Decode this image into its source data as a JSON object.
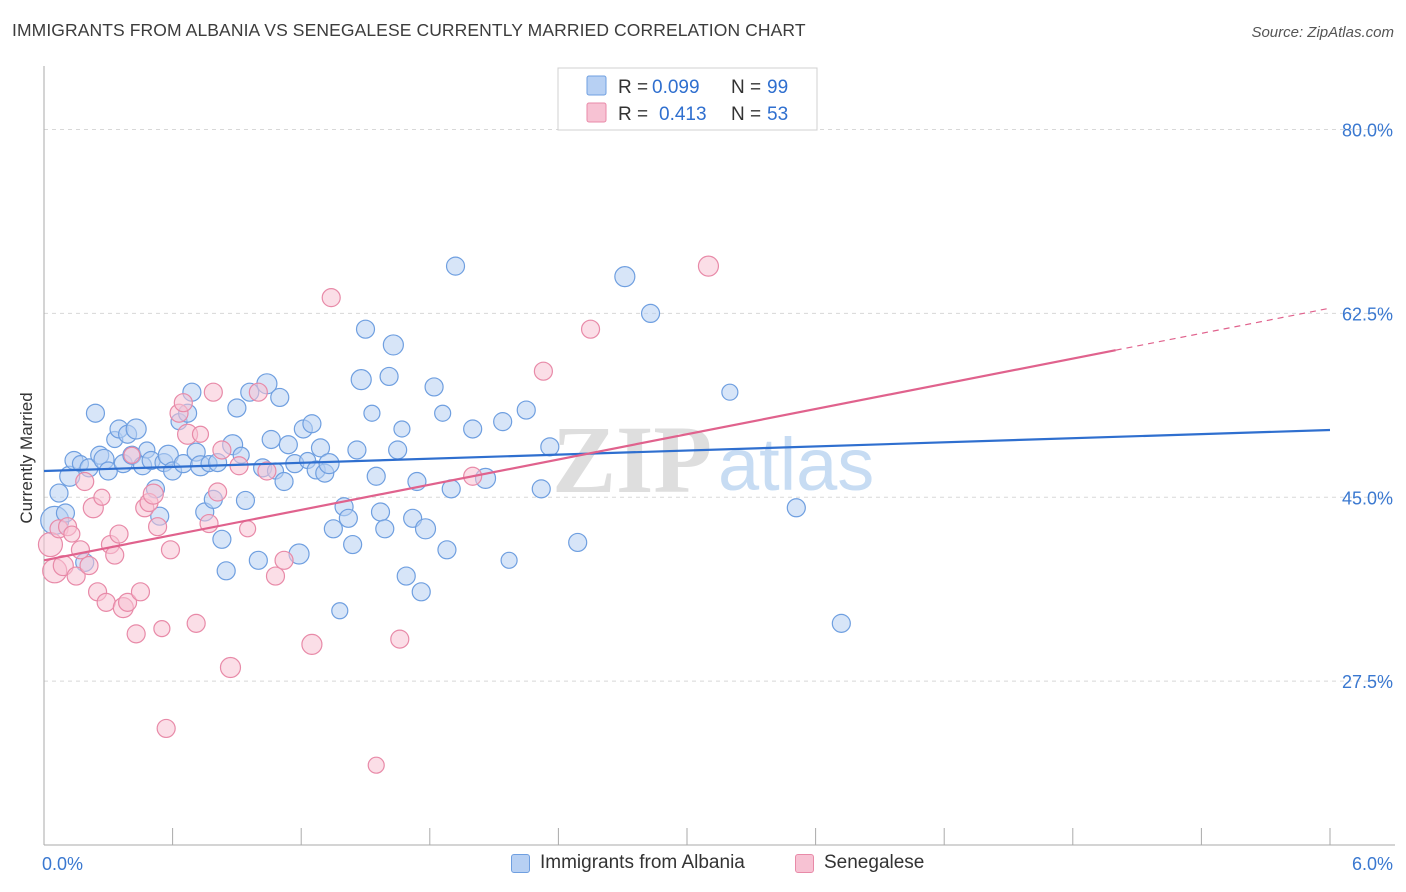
{
  "header": {
    "title": "IMMIGRANTS FROM ALBANIA VS SENEGALESE CURRENTLY MARRIED CORRELATION CHART",
    "source": "Source: ZipAtlas.com"
  },
  "watermark": {
    "zip": "ZIP",
    "atlas": "atlas"
  },
  "chart_data": {
    "type": "scatter",
    "xlabel": "",
    "ylabel": "Currently Married",
    "xlim": [
      0,
      6
    ],
    "ylim": [
      12,
      85
    ],
    "x_tick_labels": [
      {
        "value": 0,
        "label": "0.0%"
      },
      {
        "value": 6,
        "label": "6.0%"
      }
    ],
    "y_ticks": [
      {
        "value": 27.5,
        "label": "27.5%"
      },
      {
        "value": 45.0,
        "label": "45.0%"
      },
      {
        "value": 62.5,
        "label": "62.5%"
      },
      {
        "value": 80.0,
        "label": "80.0%"
      }
    ],
    "grid": "horizontal dashed",
    "legend_position": "top-center",
    "series": [
      {
        "name": "Immigrants from Albania",
        "color": "#6f9fe0",
        "fill": "#b7d0f3",
        "line_color": "#2f6fcf",
        "r_label": "R =",
        "r_value": "0.099",
        "n_label": "N =",
        "n_value": "99",
        "trend": {
          "x": [
            0,
            6
          ],
          "y": [
            47.5,
            51.4
          ]
        },
        "points": [
          [
            0.05,
            42.8
          ],
          [
            0.07,
            45.4
          ],
          [
            0.1,
            43.5
          ],
          [
            0.12,
            47.0
          ],
          [
            0.14,
            48.5
          ],
          [
            0.17,
            48.2
          ],
          [
            0.19,
            38.8
          ],
          [
            0.21,
            47.8
          ],
          [
            0.24,
            53.0
          ],
          [
            0.26,
            49.0
          ],
          [
            0.28,
            48.6
          ],
          [
            0.3,
            47.5
          ],
          [
            0.33,
            50.5
          ],
          [
            0.35,
            51.5
          ],
          [
            0.37,
            48.2
          ],
          [
            0.39,
            51.0
          ],
          [
            0.41,
            49.0
          ],
          [
            0.43,
            51.5
          ],
          [
            0.46,
            48.0
          ],
          [
            0.48,
            49.5
          ],
          [
            0.5,
            48.5
          ],
          [
            0.52,
            45.8
          ],
          [
            0.54,
            43.2
          ],
          [
            0.56,
            48.3
          ],
          [
            0.58,
            49.0
          ],
          [
            0.6,
            47.5
          ],
          [
            0.63,
            52.2
          ],
          [
            0.65,
            48.2
          ],
          [
            0.67,
            53.0
          ],
          [
            0.69,
            55.0
          ],
          [
            0.71,
            49.3
          ],
          [
            0.73,
            48.0
          ],
          [
            0.75,
            43.6
          ],
          [
            0.77,
            48.2
          ],
          [
            0.79,
            44.8
          ],
          [
            0.81,
            48.3
          ],
          [
            0.83,
            41.0
          ],
          [
            0.85,
            38.0
          ],
          [
            0.88,
            50.0
          ],
          [
            0.9,
            53.5
          ],
          [
            0.92,
            49.0
          ],
          [
            0.94,
            44.7
          ],
          [
            0.96,
            55.0
          ],
          [
            1.0,
            39.0
          ],
          [
            1.02,
            47.8
          ],
          [
            1.04,
            55.8
          ],
          [
            1.06,
            50.5
          ],
          [
            1.08,
            47.5
          ],
          [
            1.1,
            54.5
          ],
          [
            1.12,
            46.5
          ],
          [
            1.14,
            50.0
          ],
          [
            1.17,
            48.2
          ],
          [
            1.19,
            39.6
          ],
          [
            1.21,
            51.5
          ],
          [
            1.23,
            48.5
          ],
          [
            1.25,
            52.0
          ],
          [
            1.27,
            47.6
          ],
          [
            1.29,
            49.7
          ],
          [
            1.31,
            47.3
          ],
          [
            1.33,
            48.2
          ],
          [
            1.35,
            42.0
          ],
          [
            1.38,
            34.2
          ],
          [
            1.4,
            44.1
          ],
          [
            1.42,
            43.0
          ],
          [
            1.44,
            40.5
          ],
          [
            1.46,
            49.5
          ],
          [
            1.48,
            56.2
          ],
          [
            1.5,
            61.0
          ],
          [
            1.53,
            53.0
          ],
          [
            1.55,
            47.0
          ],
          [
            1.57,
            43.6
          ],
          [
            1.59,
            42.0
          ],
          [
            1.61,
            56.5
          ],
          [
            1.63,
            59.5
          ],
          [
            1.65,
            49.5
          ],
          [
            1.67,
            51.5
          ],
          [
            1.69,
            37.5
          ],
          [
            1.72,
            43.0
          ],
          [
            1.74,
            46.5
          ],
          [
            1.76,
            36.0
          ],
          [
            1.78,
            42.0
          ],
          [
            1.82,
            55.5
          ],
          [
            1.86,
            53.0
          ],
          [
            1.88,
            40.0
          ],
          [
            1.9,
            45.8
          ],
          [
            1.92,
            67.0
          ],
          [
            2.0,
            51.5
          ],
          [
            2.06,
            46.8
          ],
          [
            2.14,
            52.2
          ],
          [
            2.17,
            39.0
          ],
          [
            2.25,
            53.3
          ],
          [
            2.32,
            45.8
          ],
          [
            2.36,
            49.8
          ],
          [
            2.49,
            40.7
          ],
          [
            2.71,
            66.0
          ],
          [
            2.83,
            62.5
          ],
          [
            3.2,
            55.0
          ],
          [
            3.51,
            44.0
          ],
          [
            3.72,
            33.0
          ]
        ]
      },
      {
        "name": "Senegalese",
        "color": "#e88aa8",
        "fill": "#f7c2d3",
        "line_color": "#e0628d",
        "r_label": "R =",
        "r_value": "0.413",
        "n_label": "N =",
        "n_value": "53",
        "trend": {
          "x": [
            0,
            6
          ],
          "y": [
            39.0,
            63.0
          ]
        },
        "trend_solid_until": 5.0,
        "points": [
          [
            0.03,
            40.5
          ],
          [
            0.05,
            38.0
          ],
          [
            0.07,
            42.0
          ],
          [
            0.09,
            38.5
          ],
          [
            0.11,
            42.2
          ],
          [
            0.13,
            41.5
          ],
          [
            0.15,
            37.5
          ],
          [
            0.17,
            40.0
          ],
          [
            0.19,
            46.5
          ],
          [
            0.21,
            38.5
          ],
          [
            0.23,
            44.0
          ],
          [
            0.25,
            36.0
          ],
          [
            0.27,
            45.0
          ],
          [
            0.29,
            35.0
          ],
          [
            0.31,
            40.5
          ],
          [
            0.33,
            39.5
          ],
          [
            0.35,
            41.5
          ],
          [
            0.37,
            34.5
          ],
          [
            0.39,
            35.0
          ],
          [
            0.41,
            49.0
          ],
          [
            0.43,
            32.0
          ],
          [
            0.45,
            36.0
          ],
          [
            0.47,
            44.0
          ],
          [
            0.49,
            44.5
          ],
          [
            0.51,
            45.3
          ],
          [
            0.53,
            42.2
          ],
          [
            0.55,
            32.5
          ],
          [
            0.57,
            23.0
          ],
          [
            0.59,
            40.0
          ],
          [
            0.63,
            53.0
          ],
          [
            0.65,
            54.0
          ],
          [
            0.67,
            51.0
          ],
          [
            0.71,
            33.0
          ],
          [
            0.73,
            51.0
          ],
          [
            0.77,
            42.5
          ],
          [
            0.79,
            55.0
          ],
          [
            0.81,
            45.5
          ],
          [
            0.83,
            49.5
          ],
          [
            0.87,
            28.8
          ],
          [
            0.91,
            48.0
          ],
          [
            0.95,
            42.0
          ],
          [
            1.0,
            55.0
          ],
          [
            1.04,
            47.5
          ],
          [
            1.08,
            37.5
          ],
          [
            1.12,
            39.0
          ],
          [
            1.25,
            31.0
          ],
          [
            1.34,
            64.0
          ],
          [
            1.55,
            19.5
          ],
          [
            1.66,
            31.5
          ],
          [
            2.0,
            47.0
          ],
          [
            2.33,
            57.0
          ],
          [
            2.55,
            61.0
          ],
          [
            3.1,
            67.0
          ]
        ]
      }
    ]
  }
}
